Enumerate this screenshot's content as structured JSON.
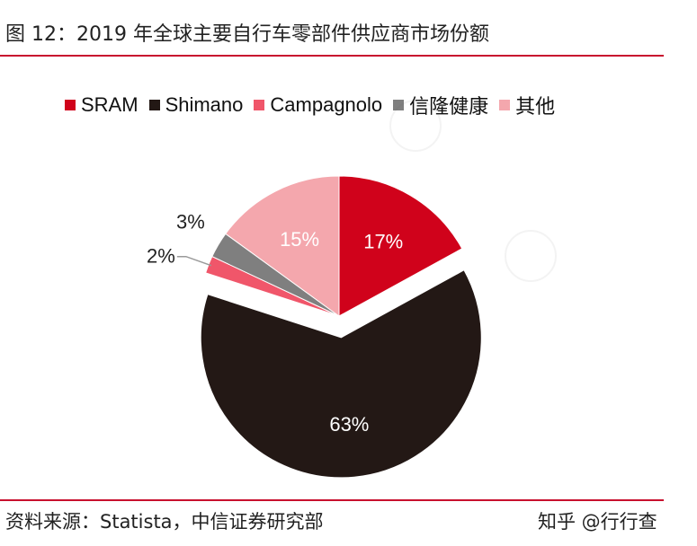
{
  "header": {
    "title": "图 12：2019 年全球主要自行车零部件供应商市场份额"
  },
  "footer": {
    "source": "资料来源：Statista，中信证券研究部",
    "credit": "知乎 @行行查"
  },
  "colors": {
    "rule": "#c8102e"
  },
  "chart_data": {
    "type": "pie",
    "title": "",
    "start_angle_deg": 0,
    "direction": "clockwise",
    "exploded": [
      "Shimano"
    ],
    "legend_position": "top",
    "series": [
      {
        "name": "SRAM",
        "value": 17,
        "label": "17%",
        "color": "#d0021b",
        "label_color": "#ffffff"
      },
      {
        "name": "Shimano",
        "value": 63,
        "label": "63%",
        "color": "#231815",
        "label_color": "#ffffff"
      },
      {
        "name": "Campagnolo",
        "value": 2,
        "label": "2%",
        "color": "#f0566a",
        "label_color": "#222222"
      },
      {
        "name": "信隆健康",
        "value": 3,
        "label": "3%",
        "color": "#7f7f7f",
        "label_color": "#222222"
      },
      {
        "name": "其他",
        "value": 15,
        "label": "15%",
        "color": "#f4a7ad",
        "label_color": "#ffffff"
      }
    ]
  }
}
